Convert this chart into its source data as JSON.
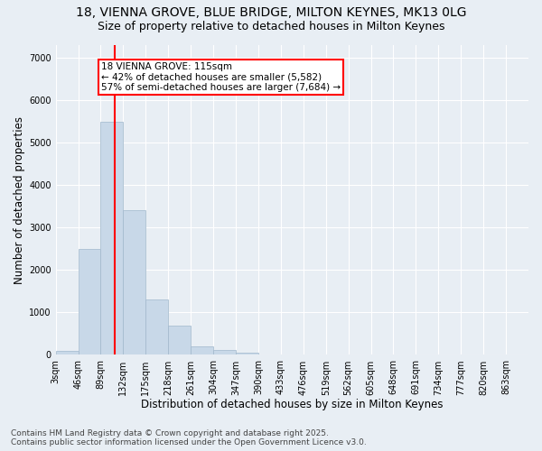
{
  "title_line1": "18, VIENNA GROVE, BLUE BRIDGE, MILTON KEYNES, MK13 0LG",
  "title_line2": "Size of property relative to detached houses in Milton Keynes",
  "xlabel": "Distribution of detached houses by size in Milton Keynes",
  "ylabel": "Number of detached properties",
  "bar_edges": [
    3,
    46,
    89,
    132,
    175,
    218,
    261,
    304,
    347,
    390,
    433,
    476,
    519,
    562,
    605,
    648,
    691,
    734,
    777,
    820,
    863
  ],
  "bar_heights": [
    100,
    2500,
    5500,
    3400,
    1300,
    700,
    200,
    110,
    50,
    10,
    5,
    2,
    1,
    0,
    0,
    0,
    0,
    0,
    0,
    0
  ],
  "bar_color": "#c8d8e8",
  "bar_edge_color": "#a0b8cc",
  "bar_linewidth": 0.5,
  "vline_x": 115,
  "vline_color": "red",
  "annotation_text": "18 VIENNA GROVE: 115sqm\n← 42% of detached houses are smaller (5,582)\n57% of semi-detached houses are larger (7,684) →",
  "annotation_fontsize": 7.5,
  "box_color": "white",
  "box_edge_color": "red",
  "ylim": [
    0,
    7300
  ],
  "yticks": [
    0,
    1000,
    2000,
    3000,
    4000,
    5000,
    6000,
    7000
  ],
  "background_color": "#e8eef4",
  "grid_color": "white",
  "footnote": "Contains HM Land Registry data © Crown copyright and database right 2025.\nContains public sector information licensed under the Open Government Licence v3.0.",
  "footnote_fontsize": 6.5,
  "title_fontsize1": 10,
  "title_fontsize2": 9,
  "xlabel_fontsize": 8.5,
  "ylabel_fontsize": 8.5,
  "tick_fontsize": 7
}
